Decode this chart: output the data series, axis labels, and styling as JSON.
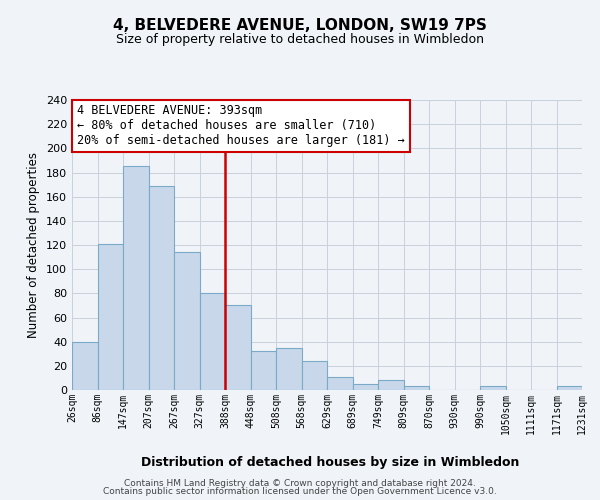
{
  "title": "4, BELVEDERE AVENUE, LONDON, SW19 7PS",
  "subtitle": "Size of property relative to detached houses in Wimbledon",
  "xlabel": "Distribution of detached houses by size in Wimbledon",
  "ylabel": "Number of detached properties",
  "footer_line1": "Contains HM Land Registry data © Crown copyright and database right 2024.",
  "footer_line2": "Contains public sector information licensed under the Open Government Licence v3.0.",
  "bin_labels": [
    "26sqm",
    "86sqm",
    "147sqm",
    "207sqm",
    "267sqm",
    "327sqm",
    "388sqm",
    "448sqm",
    "508sqm",
    "568sqm",
    "629sqm",
    "689sqm",
    "749sqm",
    "809sqm",
    "870sqm",
    "930sqm",
    "990sqm",
    "1050sqm",
    "1111sqm",
    "1171sqm",
    "1231sqm"
  ],
  "values": [
    40,
    121,
    185,
    169,
    114,
    80,
    70,
    32,
    35,
    24,
    11,
    5,
    8,
    3,
    0,
    0,
    3,
    0,
    0,
    3
  ],
  "bar_color": "#c8d8ea",
  "bar_edge_color": "#7aaac8",
  "vline_color": "#cc0000",
  "vline_bin_index": 6,
  "annotation_text_line1": "4 BELVEDERE AVENUE: 393sqm",
  "annotation_text_line2": "← 80% of detached houses are smaller (710)",
  "annotation_text_line3": "20% of semi-detached houses are larger (181) →",
  "annotation_box_facecolor": "#ffffff",
  "annotation_box_edgecolor": "#cc0000",
  "ylim": [
    0,
    240
  ],
  "yticks": [
    0,
    20,
    40,
    60,
    80,
    100,
    120,
    140,
    160,
    180,
    200,
    220,
    240
  ],
  "grid_color": "#c8d0dc",
  "fig_bg_color": "#f0f4f8"
}
